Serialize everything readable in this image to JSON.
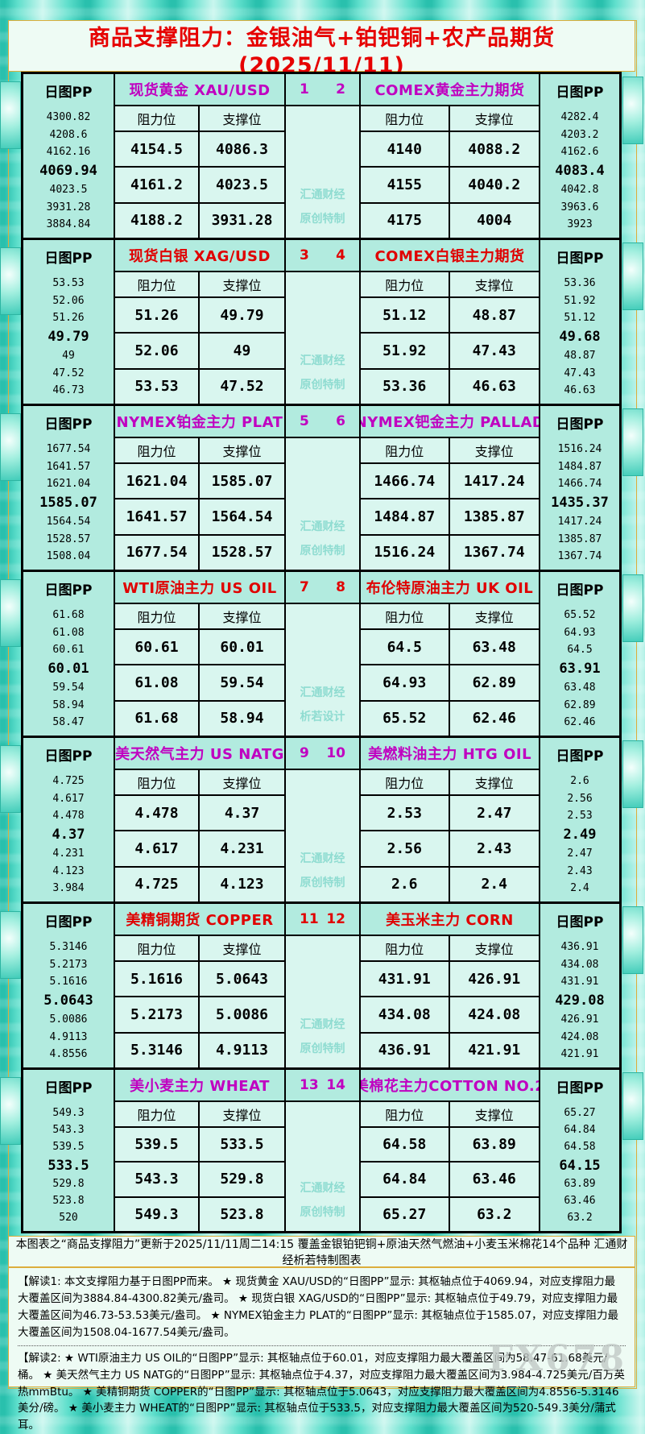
{
  "page": {
    "title": "商品支撑阻力：金银油气+铂钯铜+农产品期货(2025/11/11)",
    "subtitle": "更新于2025/11/11周二14:15 覆盖金银铂钯铜+原油天然气燃油+小麦玉米棉花14个品种 汇通财经析若特制图表",
    "footer_bar": "本图表之“商品支撑阻力”更新于2025/11/11周二14:15 覆盖金银铂钯铜+原油天然气燃油+小麦玉米棉花14个品种 汇通财经析若特制图表",
    "note1": "【解读1: 本文支撑阻力基于日图PP而来。 ★ 现货黄金 XAU/USD的“日图PP”显示: 其枢轴点位于4069.94，对应支撑阻力最大覆盖区间为3884.84-4300.82美元/盎司。 ★ 现货白银 XAG/USD的“日图PP”显示: 其枢轴点位于49.79，对应支撑阻力最大覆盖区间为46.73-53.53美元/盎司。 ★ NYMEX铂金主力 PLAT的“日图PP”显示: 其枢轴点位于1585.07，对应支撑阻力最大覆盖区间为1508.04-1677.54美元/盎司。",
    "note2": "【解读2: ★ WTI原油主力 US OIL的“日图PP”显示: 其枢轴点位于60.01，对应支撑阻力最大覆盖区间为58.47-61.68美元/桶。 ★ 美天然气主力 US NATG的“日图PP”显示: 其枢轴点位于4.37，对应支撑阻力最大覆盖区间为3.984-4.725美元/百万英热mmBtu。 ★ 美精铜期货 COPPER的“日图PP”显示: 其枢轴点位于5.0643，对应支撑阻力最大覆盖区间为4.8556-5.3146美分/磅。 ★ 美小麦主力 WHEAT的“日图PP”显示: 其枢轴点位于533.5，对应支撑阻力最大覆盖区间为520-549.3美分/蒲式耳。",
    "brand_watermark": "FX678"
  },
  "labels": {
    "pp_header": "日图PP",
    "resistance": "阻力位",
    "support": "支撑位",
    "watermark_line1": "汇通财经"
  },
  "colors": {
    "accent_purple": "#c000c0",
    "accent_red": "#e00000",
    "title_red": "#e60000",
    "gold_border": "#dcae3c",
    "cell_dark": "#b2ebdf",
    "cell_light": "#d9f6ef",
    "watermark_teal": "#8fdcd1"
  },
  "chart_data": {
    "type": "table",
    "title": "商品支撑阻力 2025/11/11 (日图PP 支撑/阻力位)",
    "columns": [
      "阻力位",
      "支撑位"
    ],
    "rows": [
      {
        "no_left": "1",
        "no_right": "2",
        "accent": "purple",
        "watermark_line2": "原创特制",
        "left": {
          "title": "现货黄金 XAU/USD",
          "pivot": "4069.94",
          "pp": [
            "4300.82",
            "4208.6",
            "4162.16",
            "4069.94",
            "4023.5",
            "3931.28",
            "3884.84"
          ],
          "rows": [
            [
              "4154.5",
              "4086.3"
            ],
            [
              "4161.2",
              "4023.5"
            ],
            [
              "4188.2",
              "3931.28"
            ]
          ]
        },
        "right": {
          "title": "COMEX黄金主力期货",
          "pivot": "4083.4",
          "pp": [
            "4282.4",
            "4203.2",
            "4162.6",
            "4083.4",
            "4042.8",
            "3963.6",
            "3923"
          ],
          "rows": [
            [
              "4140",
              "4088.2"
            ],
            [
              "4155",
              "4040.2"
            ],
            [
              "4175",
              "4004"
            ]
          ]
        }
      },
      {
        "no_left": "3",
        "no_right": "4",
        "accent": "red",
        "watermark_line2": "原创特制",
        "left": {
          "title": "现货白银 XAG/USD",
          "pivot": "49.79",
          "pp": [
            "53.53",
            "52.06",
            "51.26",
            "49.79",
            "49",
            "47.52",
            "46.73"
          ],
          "rows": [
            [
              "51.26",
              "49.79"
            ],
            [
              "52.06",
              "49"
            ],
            [
              "53.53",
              "47.52"
            ]
          ]
        },
        "right": {
          "title": "COMEX白银主力期货",
          "pivot": "49.68",
          "pp": [
            "53.36",
            "51.92",
            "51.12",
            "49.68",
            "48.87",
            "47.43",
            "46.63"
          ],
          "rows": [
            [
              "51.12",
              "48.87"
            ],
            [
              "51.92",
              "47.43"
            ],
            [
              "53.36",
              "46.63"
            ]
          ]
        }
      },
      {
        "no_left": "5",
        "no_right": "6",
        "accent": "purple",
        "watermark_line2": "原创特制",
        "left": {
          "title": "NYMEX铂金主力 PLAT",
          "pivot": "1585.07",
          "pp": [
            "1677.54",
            "1641.57",
            "1621.04",
            "1585.07",
            "1564.54",
            "1528.57",
            "1508.04"
          ],
          "rows": [
            [
              "1621.04",
              "1585.07"
            ],
            [
              "1641.57",
              "1564.54"
            ],
            [
              "1677.54",
              "1528.57"
            ]
          ]
        },
        "right": {
          "title": "NYMEX钯金主力 PALLAD",
          "pivot": "1435.37",
          "pp": [
            "1516.24",
            "1484.87",
            "1466.74",
            "1435.37",
            "1417.24",
            "1385.87",
            "1367.74"
          ],
          "rows": [
            [
              "1466.74",
              "1417.24"
            ],
            [
              "1484.87",
              "1385.87"
            ],
            [
              "1516.24",
              "1367.74"
            ]
          ]
        }
      },
      {
        "no_left": "7",
        "no_right": "8",
        "accent": "red",
        "watermark_line2": "析若设计",
        "left": {
          "title": "WTI原油主力 US OIL",
          "pivot": "60.01",
          "pp": [
            "61.68",
            "61.08",
            "60.61",
            "60.01",
            "59.54",
            "58.94",
            "58.47"
          ],
          "rows": [
            [
              "60.61",
              "60.01"
            ],
            [
              "61.08",
              "59.54"
            ],
            [
              "61.68",
              "58.94"
            ]
          ]
        },
        "right": {
          "title": "布伦特原油主力 UK OIL",
          "pivot": "63.91",
          "pp": [
            "65.52",
            "64.93",
            "64.5",
            "63.91",
            "63.48",
            "62.89",
            "62.46"
          ],
          "rows": [
            [
              "64.5",
              "63.48"
            ],
            [
              "64.93",
              "62.89"
            ],
            [
              "65.52",
              "62.46"
            ]
          ]
        }
      },
      {
        "no_left": "9",
        "no_right": "10",
        "accent": "purple",
        "watermark_line2": "原创特制",
        "left": {
          "title": "美天然气主力 US NATG",
          "pivot": "4.37",
          "pp": [
            "4.725",
            "4.617",
            "4.478",
            "4.37",
            "4.231",
            "4.123",
            "3.984"
          ],
          "rows": [
            [
              "4.478",
              "4.37"
            ],
            [
              "4.617",
              "4.231"
            ],
            [
              "4.725",
              "4.123"
            ]
          ]
        },
        "right": {
          "title": "美燃料油主力 HTG OIL",
          "pivot": "2.49",
          "pp": [
            "2.6",
            "2.56",
            "2.53",
            "2.49",
            "2.47",
            "2.43",
            "2.4"
          ],
          "rows": [
            [
              "2.53",
              "2.47"
            ],
            [
              "2.56",
              "2.43"
            ],
            [
              "2.6",
              "2.4"
            ]
          ]
        }
      },
      {
        "no_left": "11",
        "no_right": "12",
        "accent": "red",
        "watermark_line2": "原创特制",
        "left": {
          "title": "美精铜期货 COPPER",
          "pivot": "5.0643",
          "pp": [
            "5.3146",
            "5.2173",
            "5.1616",
            "5.0643",
            "5.0086",
            "4.9113",
            "4.8556"
          ],
          "rows": [
            [
              "5.1616",
              "5.0643"
            ],
            [
              "5.2173",
              "5.0086"
            ],
            [
              "5.3146",
              "4.9113"
            ]
          ]
        },
        "right": {
          "title": "美玉米主力 CORN",
          "pivot": "429.08",
          "pp": [
            "436.91",
            "434.08",
            "431.91",
            "429.08",
            "426.91",
            "424.08",
            "421.91"
          ],
          "rows": [
            [
              "431.91",
              "426.91"
            ],
            [
              "434.08",
              "424.08"
            ],
            [
              "436.91",
              "421.91"
            ]
          ]
        }
      },
      {
        "no_left": "13",
        "no_right": "14",
        "accent": "purple",
        "watermark_line2": "原创特制",
        "left": {
          "title": "美小麦主力 WHEAT",
          "pivot": "533.5",
          "pp": [
            "549.3",
            "543.3",
            "539.5",
            "533.5",
            "529.8",
            "523.8",
            "520"
          ],
          "rows": [
            [
              "539.5",
              "533.5"
            ],
            [
              "543.3",
              "529.8"
            ],
            [
              "549.3",
              "523.8"
            ]
          ]
        },
        "right": {
          "title": "美棉花主力COTTON NO.2",
          "pivot": "64.15",
          "pp": [
            "65.27",
            "64.84",
            "64.58",
            "64.15",
            "63.89",
            "63.46",
            "63.2"
          ],
          "rows": [
            [
              "64.58",
              "63.89"
            ],
            [
              "64.84",
              "63.46"
            ],
            [
              "65.27",
              "63.2"
            ]
          ]
        }
      }
    ]
  }
}
